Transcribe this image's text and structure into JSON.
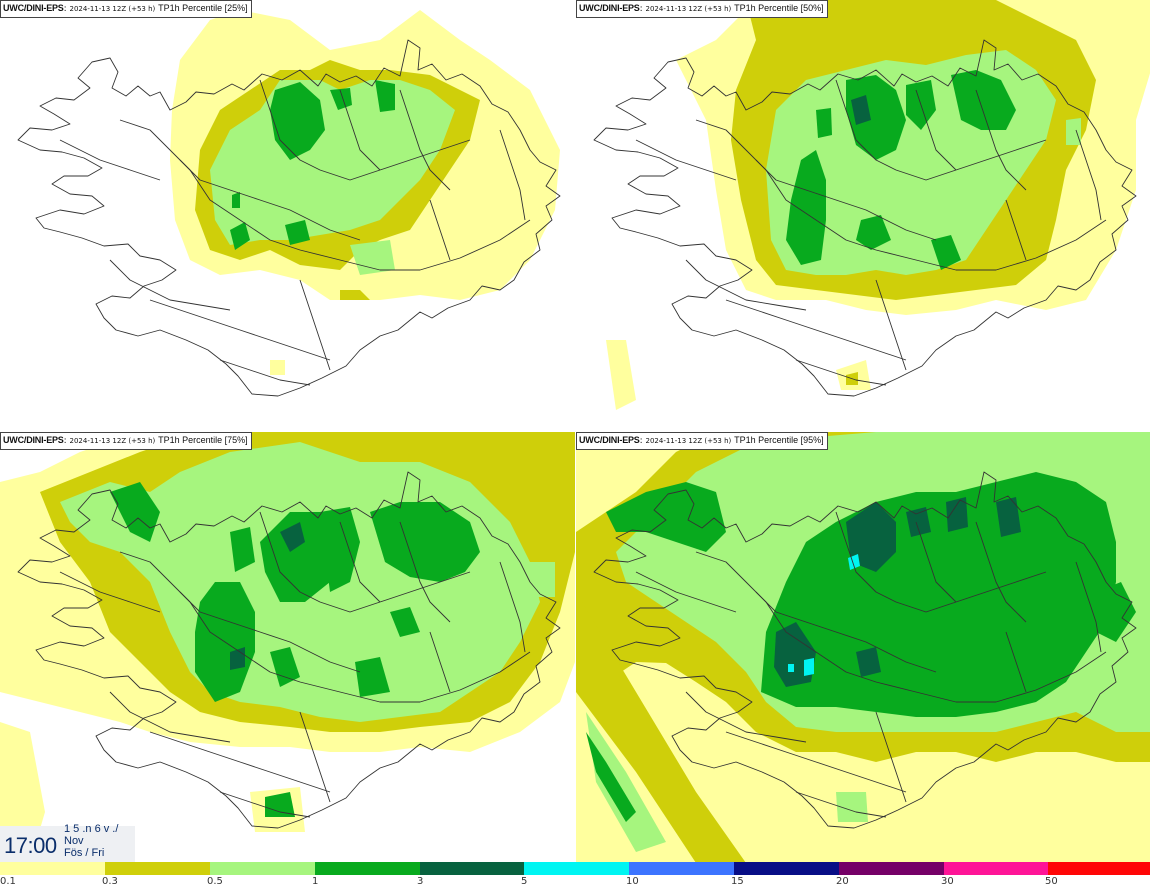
{
  "panels": [
    {
      "source": "UWC/DINI-EPS",
      "run": "2024-11-13 12Z (+53 h)",
      "variable": "TP1h Percentile [25%]"
    },
    {
      "source": "UWC/DINI-EPS",
      "run": "2024-11-13 12Z (+53 h)",
      "variable": "TP1h Percentile [50%]"
    },
    {
      "source": "UWC/DINI-EPS",
      "run": "2024-11-13 12Z (+53 h)",
      "variable": "TP1h Percentile [75%]"
    },
    {
      "source": "UWC/DINI-EPS",
      "run": "2024-11-13 12Z (+53 h)",
      "variable": "TP1h Percentile [95%]"
    }
  ],
  "time": {
    "clock": "17:00",
    "line1": "1 5 .n 6 v ./",
    "line2": "Nov",
    "line3": "Fös / Fri"
  },
  "legend": {
    "labels": [
      "0.1",
      "0.3",
      "0.5",
      "1",
      "3",
      "5",
      "10",
      "15",
      "20",
      "30",
      "50"
    ],
    "colors": [
      "#ffff9e",
      "#cfcf0a",
      "#a6f57e",
      "#08aa1e",
      "#07623f",
      "#00f5f2",
      "#3c74ff",
      "#080e86",
      "#750067",
      "#fe1497",
      "#ff0606"
    ]
  },
  "colors": {
    "c1": "#ffff9e",
    "c2": "#cfcf0a",
    "c3": "#a6f57e",
    "c4": "#08aa1e",
    "c5": "#07623f",
    "c6": "#00f5f2"
  }
}
